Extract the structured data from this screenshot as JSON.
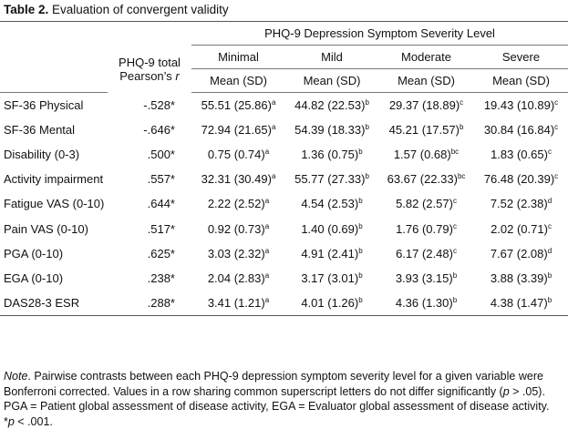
{
  "title": {
    "label": "Table 2.",
    "text": " Evaluation of convergent validity"
  },
  "header": {
    "group": "PHQ-9 Depression Symptom Severity Level",
    "r_line1": "PHQ-9 total",
    "r_line2": "Pearson’s ",
    "r_italic": "r",
    "levels": [
      "Minimal",
      "Mild",
      "Moderate",
      "Severe"
    ],
    "sub": "Mean (SD)"
  },
  "rows": [
    {
      "var": "SF-36 Physical",
      "r": "-.528*",
      "cells": [
        [
          "55.51 (25.86)",
          "a"
        ],
        [
          "44.82 (22.53)",
          "b"
        ],
        [
          "29.37 (18.89)",
          "c"
        ],
        [
          "19.43 (10.89)",
          "c"
        ]
      ]
    },
    {
      "var": "SF-36 Mental",
      "r": "-.646*",
      "cells": [
        [
          "72.94 (21.65)",
          "a"
        ],
        [
          "54.39 (18.33)",
          "b"
        ],
        [
          "45.21 (17.57)",
          "b"
        ],
        [
          "30.84 (16.84)",
          "c"
        ]
      ]
    },
    {
      "var": "Disability (0-3)",
      "r": ".500*",
      "cells": [
        [
          "0.75 (0.74)",
          "a"
        ],
        [
          "1.36 (0.75)",
          "b"
        ],
        [
          "1.57 (0.68)",
          "bc"
        ],
        [
          "1.83 (0.65)",
          "c"
        ]
      ]
    },
    {
      "var": "Activity impairment",
      "r": ".557*",
      "cells": [
        [
          "32.31 (30.49)",
          "a"
        ],
        [
          "55.77 (27.33)",
          "b"
        ],
        [
          "63.67 (22.33)",
          "bc"
        ],
        [
          "76.48 (20.39)",
          "c"
        ]
      ]
    },
    {
      "var": "Fatigue VAS (0-10)",
      "r": ".644*",
      "cells": [
        [
          "2.22 (2.52)",
          "a"
        ],
        [
          "4.54 (2.53)",
          "b"
        ],
        [
          "5.82 (2.57)",
          "c"
        ],
        [
          "7.52 (2.38)",
          "d"
        ]
      ]
    },
    {
      "var": "Pain VAS (0-10)",
      "r": ".517*",
      "cells": [
        [
          "0.92 (0.73)",
          "a"
        ],
        [
          "1.40 (0.69)",
          "b"
        ],
        [
          "1.76 (0.79)",
          "c"
        ],
        [
          "2.02 (0.71)",
          "c"
        ]
      ]
    },
    {
      "var": "PGA (0-10)",
      "r": ".625*",
      "cells": [
        [
          "3.03 (2.32)",
          "a"
        ],
        [
          "4.91 (2.41)",
          "b"
        ],
        [
          "6.17 (2.48)",
          "c"
        ],
        [
          "7.67 (2.08)",
          "d"
        ]
      ]
    },
    {
      "var": "EGA (0-10)",
      "r": ".238*",
      "cells": [
        [
          "2.04 (2.83)",
          "a"
        ],
        [
          "3.17 (3.01)",
          "b"
        ],
        [
          "3.93 (3.15)",
          "b"
        ],
        [
          "3.88 (3.39)",
          "b"
        ]
      ]
    },
    {
      "var": "DAS28-3 ESR",
      "r": ".288*",
      "cells": [
        [
          "3.41 (1.21)",
          "a"
        ],
        [
          "4.01 (1.26)",
          "b"
        ],
        [
          "4.36 (1.30)",
          "b"
        ],
        [
          "4.38 (1.47)",
          "b"
        ]
      ]
    }
  ],
  "note": {
    "label": "Note",
    "text1": ". Pairwise contrasts between each PHQ-9 depression symptom severity level for a given variable were Bonferroni corrected. Values in a row sharing common superscript letters do not differ significantly (",
    "p": "p",
    "text2": " > .05). PGA = Patient global assessment of disease activity, EGA = Evaluator global assessment of disease activity.",
    "star": "*",
    "p2": "p",
    "text3": " < .001."
  }
}
